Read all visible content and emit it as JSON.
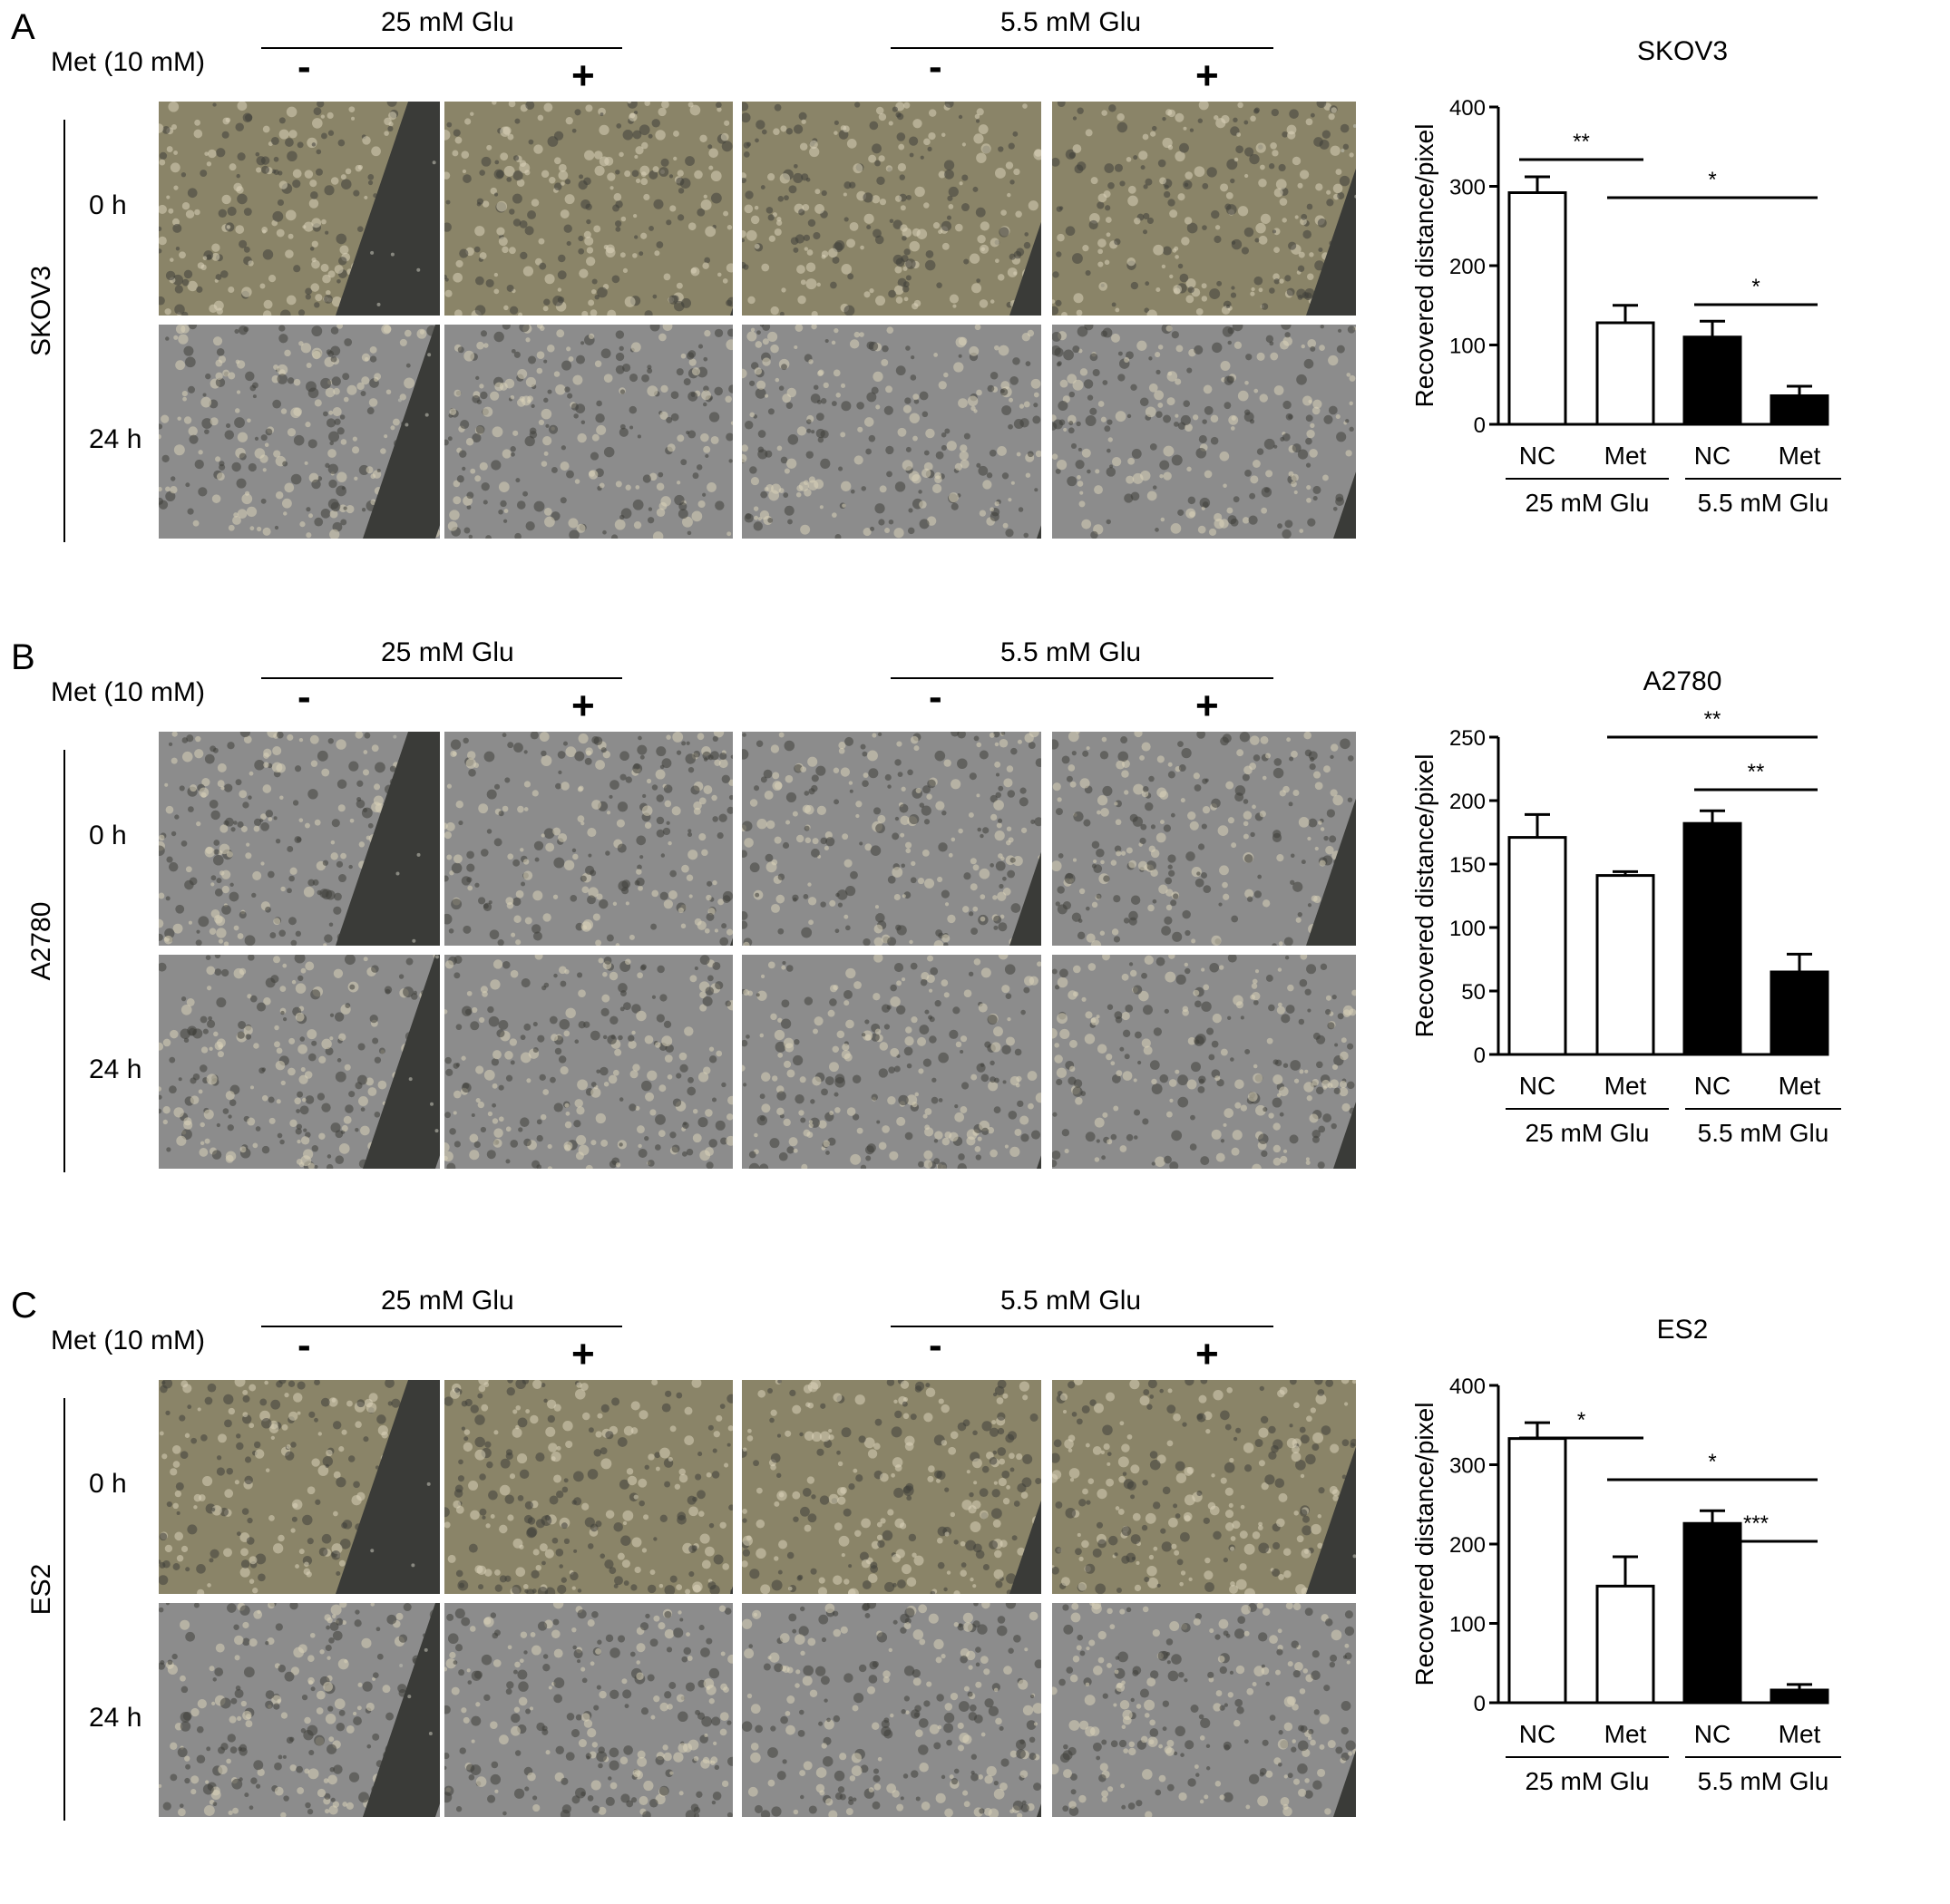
{
  "panels": [
    {
      "letter": "A",
      "glu_high": "25 mM Glu",
      "glu_low": "5.5 mM Glu",
      "met_label": "Met (10 mM)",
      "minus": "-",
      "plus": "+",
      "cell_line": "SKOV3",
      "time_0": "0 h",
      "time_24": "24 h",
      "chart_data": {
        "type": "bar",
        "title": "SKOV3",
        "ylabel": "Recovered distance/pixel",
        "categories": [
          "NC",
          "Met",
          "NC",
          "Met"
        ],
        "groups": [
          "25 mM Glu",
          "5.5 mM Glu"
        ],
        "values": [
          292,
          128,
          110,
          36
        ],
        "errors": [
          20,
          22,
          20,
          12
        ],
        "fills": [
          "#ffffff",
          "#ffffff",
          "#000000",
          "#000000"
        ],
        "ylim": [
          0,
          400
        ],
        "yticks": [
          "0",
          "100",
          "200",
          "300",
          "400"
        ],
        "significance": [
          {
            "from": 0,
            "to": 1,
            "label": "**",
            "level": 1
          },
          {
            "from": 1,
            "to": 3,
            "label": "*",
            "level": 2
          },
          {
            "from": 2,
            "to": 3,
            "label": "*",
            "level": 0
          }
        ]
      }
    },
    {
      "letter": "B",
      "glu_high": "25 mM Glu",
      "glu_low": "5.5 mM Glu",
      "met_label": "Met (10 mM)",
      "minus": "-",
      "plus": "+",
      "cell_line": "A2780",
      "time_0": "0 h",
      "time_24": "24 h",
      "chart_data": {
        "type": "bar",
        "title": "A2780",
        "ylabel": "Recovered distance/pixel",
        "categories": [
          "NC",
          "Met",
          "NC",
          "Met"
        ],
        "groups": [
          "25 mM Glu",
          "5.5 mM Glu"
        ],
        "values": [
          171,
          141,
          182,
          65
        ],
        "errors": [
          18,
          3,
          10,
          14
        ],
        "fills": [
          "#ffffff",
          "#ffffff",
          "#000000",
          "#000000"
        ],
        "ylim": [
          0,
          250
        ],
        "yticks": [
          "0",
          "50",
          "100",
          "150",
          "200",
          "250"
        ],
        "significance": [
          {
            "from": 1,
            "to": 3,
            "label": "**",
            "level": 2
          },
          {
            "from": 2,
            "to": 3,
            "label": "**",
            "level": 1
          }
        ]
      }
    },
    {
      "letter": "C",
      "glu_high": "25 mM Glu",
      "glu_low": "5.5 mM Glu",
      "met_label": "Met (10 mM)",
      "minus": "-",
      "plus": "+",
      "cell_line": "ES2",
      "time_0": "0 h",
      "time_24": "24 h",
      "chart_data": {
        "type": "bar",
        "title": "ES2",
        "ylabel": "Recovered distance/pixel",
        "categories": [
          "NC",
          "Met",
          "NC",
          "Met"
        ],
        "groups": [
          "25 mM Glu",
          "5.5 mM Glu"
        ],
        "values": [
          333,
          147,
          226,
          16
        ],
        "errors": [
          20,
          37,
          16,
          7
        ],
        "fills": [
          "#ffffff",
          "#ffffff",
          "#000000",
          "#000000"
        ],
        "ylim": [
          0,
          400
        ],
        "yticks": [
          "0",
          "100",
          "200",
          "300",
          "400"
        ],
        "significance": [
          {
            "from": 0,
            "to": 1,
            "label": "*",
            "level": 1
          },
          {
            "from": 1,
            "to": 3,
            "label": "*",
            "level": 2
          },
          {
            "from": 2,
            "to": 3,
            "label": "***",
            "level": 0
          }
        ]
      }
    }
  ],
  "image_colors": {
    "brown": "#8a8468",
    "gray": "#8c8c8c",
    "gap": "#3a3b38"
  }
}
